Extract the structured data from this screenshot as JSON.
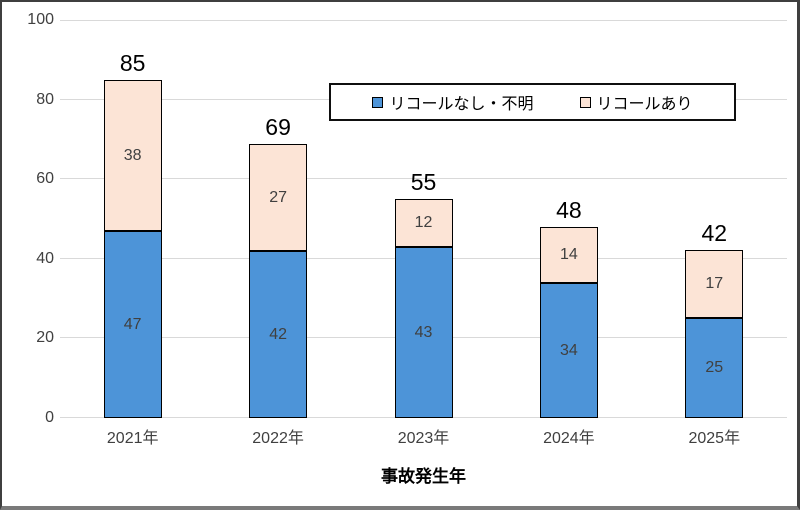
{
  "chart_data": {
    "type": "bar",
    "stacked": true,
    "title": "",
    "xlabel": "事故発生年",
    "ylabel": "",
    "ylim": [
      0,
      100
    ],
    "yticks": [
      0,
      20,
      40,
      60,
      80,
      100
    ],
    "grid": true,
    "legend_position": "top-center-inside",
    "categories": [
      "2021年",
      "2022年",
      "2023年",
      "2024年",
      "2025年"
    ],
    "series": [
      {
        "name": "リコールなし・不明",
        "color": "#4d94d8",
        "border_color": "#000000",
        "values": [
          47,
          42,
          43,
          34,
          25
        ]
      },
      {
        "name": "リコールあり",
        "color": "#fce4d6",
        "border_color": "#000000",
        "values": [
          38,
          27,
          12,
          14,
          17
        ]
      }
    ],
    "totals": [
      85,
      69,
      55,
      48,
      42
    ],
    "colors": {
      "gridline": "#d9d9d9",
      "axis_line": "#d9d9d9",
      "tick_label": "#404040",
      "data_label": "#404040",
      "total_label": "#000000",
      "legend_border": "#0f0f0f",
      "outer_border": "#3f3f3f",
      "background": "#ffffff"
    }
  }
}
